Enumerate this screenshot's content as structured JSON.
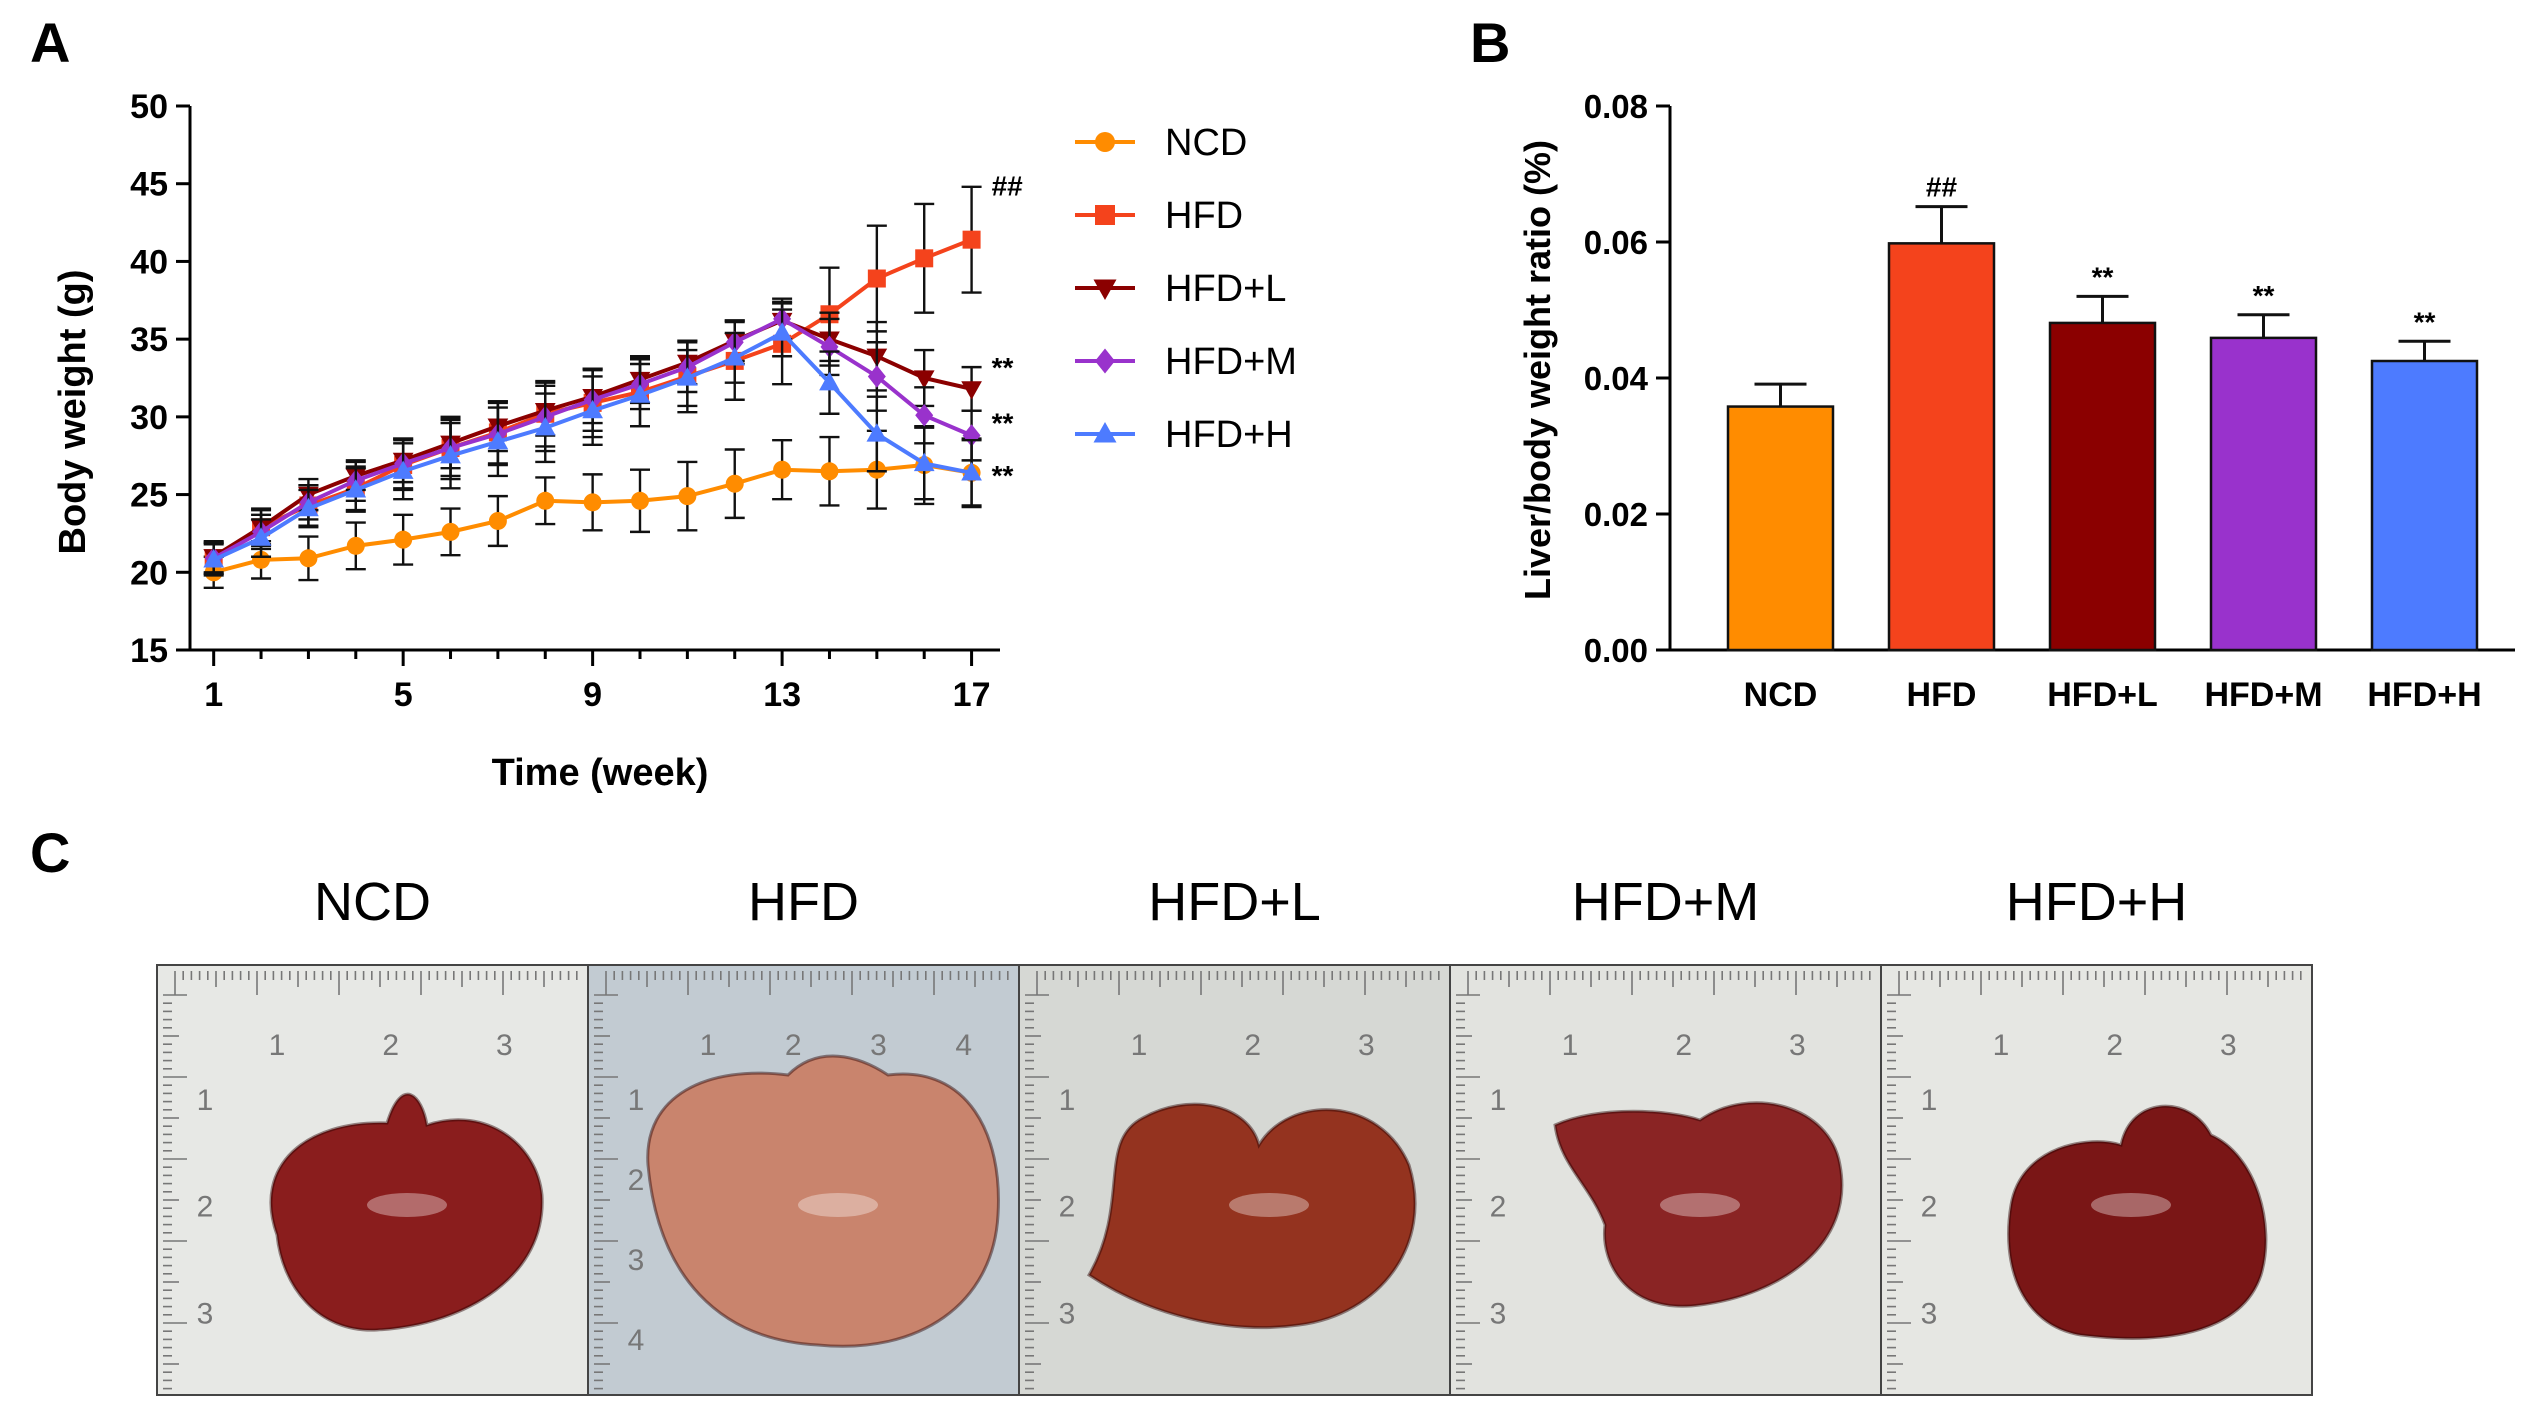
{
  "panel_labels": {
    "a": "A",
    "b": "B",
    "c": "C"
  },
  "colors": {
    "NCD": "#ff8c00",
    "HFD": "#f4431c",
    "HFD+L": "#8b0000",
    "HFD+M": "#9932cc",
    "HFD+H": "#4d7bff"
  },
  "chart_data": [
    {
      "type": "line",
      "title": "",
      "xlabel": "Time (week)",
      "ylabel": "Body weight (g)",
      "xlim": [
        0.5,
        17.6
      ],
      "ylim": [
        15,
        50
      ],
      "xticks": [
        1,
        5,
        9,
        13,
        17
      ],
      "yticks": [
        15,
        20,
        25,
        30,
        35,
        40,
        45,
        50
      ],
      "legend_position": "right",
      "x": [
        1,
        2,
        3,
        4,
        5,
        6,
        7,
        8,
        9,
        10,
        11,
        12,
        13,
        14,
        15,
        16,
        17
      ],
      "series": [
        {
          "name": "NCD",
          "marker": "circle",
          "values": [
            20.0,
            20.8,
            20.9,
            21.7,
            22.1,
            22.6,
            23.3,
            24.6,
            24.5,
            24.6,
            24.9,
            25.7,
            26.6,
            26.5,
            26.6,
            26.9,
            26.4
          ],
          "errors": [
            1.0,
            1.2,
            1.4,
            1.5,
            1.6,
            1.5,
            1.6,
            1.5,
            1.8,
            2.0,
            2.2,
            2.2,
            1.9,
            2.2,
            2.5,
            2.5,
            2.2
          ]
        },
        {
          "name": "HFD",
          "marker": "square",
          "values": [
            20.9,
            22.9,
            24.3,
            25.4,
            26.9,
            28.0,
            29.0,
            30.2,
            30.9,
            31.6,
            32.6,
            33.6,
            34.7,
            36.6,
            38.9,
            40.2,
            41.4
          ],
          "errors": [
            1.0,
            1.2,
            1.3,
            1.4,
            1.6,
            1.8,
            2.0,
            2.1,
            2.2,
            2.2,
            2.3,
            2.5,
            2.6,
            3.0,
            3.4,
            3.5,
            3.4
          ]
        },
        {
          "name": "HFD+L",
          "marker": "triangle-down",
          "values": [
            21.0,
            22.9,
            25.0,
            26.2,
            27.2,
            28.3,
            29.4,
            30.4,
            31.3,
            32.4,
            33.5,
            34.9,
            36.2,
            35.0,
            33.9,
            32.5,
            31.8
          ],
          "errors": [
            1.0,
            1.1,
            1.0,
            0.9,
            1.4,
            1.6,
            1.6,
            1.6,
            1.7,
            1.5,
            1.4,
            1.3,
            1.2,
            1.7,
            2.2,
            1.8,
            1.4
          ]
        },
        {
          "name": "HFD+M",
          "marker": "diamond",
          "values": [
            20.9,
            22.6,
            24.5,
            25.9,
            27.0,
            28.0,
            28.9,
            30.0,
            31.1,
            32.1,
            33.2,
            34.8,
            36.3,
            34.5,
            32.6,
            30.1,
            28.8
          ],
          "errors": [
            1.0,
            1.1,
            1.1,
            1.3,
            1.6,
            2.0,
            2.0,
            2.2,
            2.0,
            1.6,
            1.6,
            1.4,
            1.3,
            1.8,
            2.2,
            1.8,
            1.6
          ]
        },
        {
          "name": "HFD+H",
          "marker": "triangle-up",
          "values": [
            20.8,
            22.2,
            24.1,
            25.3,
            26.5,
            27.5,
            28.4,
            29.3,
            30.4,
            31.4,
            32.5,
            33.8,
            35.4,
            32.2,
            28.9,
            27.0,
            26.4
          ],
          "errors": [
            1.0,
            1.2,
            1.2,
            1.4,
            1.8,
            2.1,
            2.2,
            2.2,
            2.2,
            2.0,
            1.8,
            1.6,
            1.5,
            2.0,
            2.4,
            2.3,
            2.1
          ]
        }
      ],
      "annotations": [
        {
          "series": "HFD",
          "x": 17,
          "text": "##"
        },
        {
          "series": "HFD+L",
          "x": 17,
          "text": "**"
        },
        {
          "series": "HFD+M",
          "x": 17,
          "text": "**"
        },
        {
          "series": "HFD+H",
          "x": 17,
          "text": "**"
        }
      ]
    },
    {
      "type": "bar",
      "title": "",
      "xlabel": "",
      "ylabel": "Liver/body weight ratio (%)",
      "ylim": [
        0,
        0.08
      ],
      "yticks": [
        "0.00",
        "0.02",
        "0.04",
        "0.06",
        "0.08"
      ],
      "categories": [
        "NCD",
        "HFD",
        "HFD+L",
        "HFD+M",
        "HFD+H"
      ],
      "values": [
        0.0358,
        0.0598,
        0.0481,
        0.0459,
        0.0425
      ],
      "errors": [
        0.0033,
        0.0054,
        0.0039,
        0.0034,
        0.0029
      ],
      "annotations": [
        "",
        "##",
        "**",
        "**",
        "**"
      ]
    }
  ],
  "photos": [
    {
      "label": "NCD",
      "ruler_h": [
        "1",
        "2",
        "3"
      ],
      "ruler_v": [
        "1",
        "2",
        "3"
      ],
      "liver": "#8a1d1d",
      "paper": "#e7e8e5"
    },
    {
      "label": "HFD",
      "ruler_h": [
        "1",
        "2",
        "3",
        "4"
      ],
      "ruler_v": [
        "1",
        "2",
        "3",
        "4"
      ],
      "liver": "#c9846d",
      "paper": "#c2cbd2"
    },
    {
      "label": "HFD+L",
      "ruler_h": [
        "1",
        "2",
        "3"
      ],
      "ruler_v": [
        "1",
        "2",
        "3"
      ],
      "liver": "#94331f",
      "paper": "#d6d8d4"
    },
    {
      "label": "HFD+M",
      "ruler_h": [
        "1",
        "2",
        "3"
      ],
      "ruler_v": [
        "1",
        "2",
        "3"
      ],
      "liver": "#8a2424",
      "paper": "#e2e3df"
    },
    {
      "label": "HFD+H",
      "ruler_h": [
        "1",
        "2",
        "3"
      ],
      "ruler_v": [
        "1",
        "2",
        "3"
      ],
      "liver": "#7a1616",
      "paper": "#e6e7e3"
    }
  ]
}
